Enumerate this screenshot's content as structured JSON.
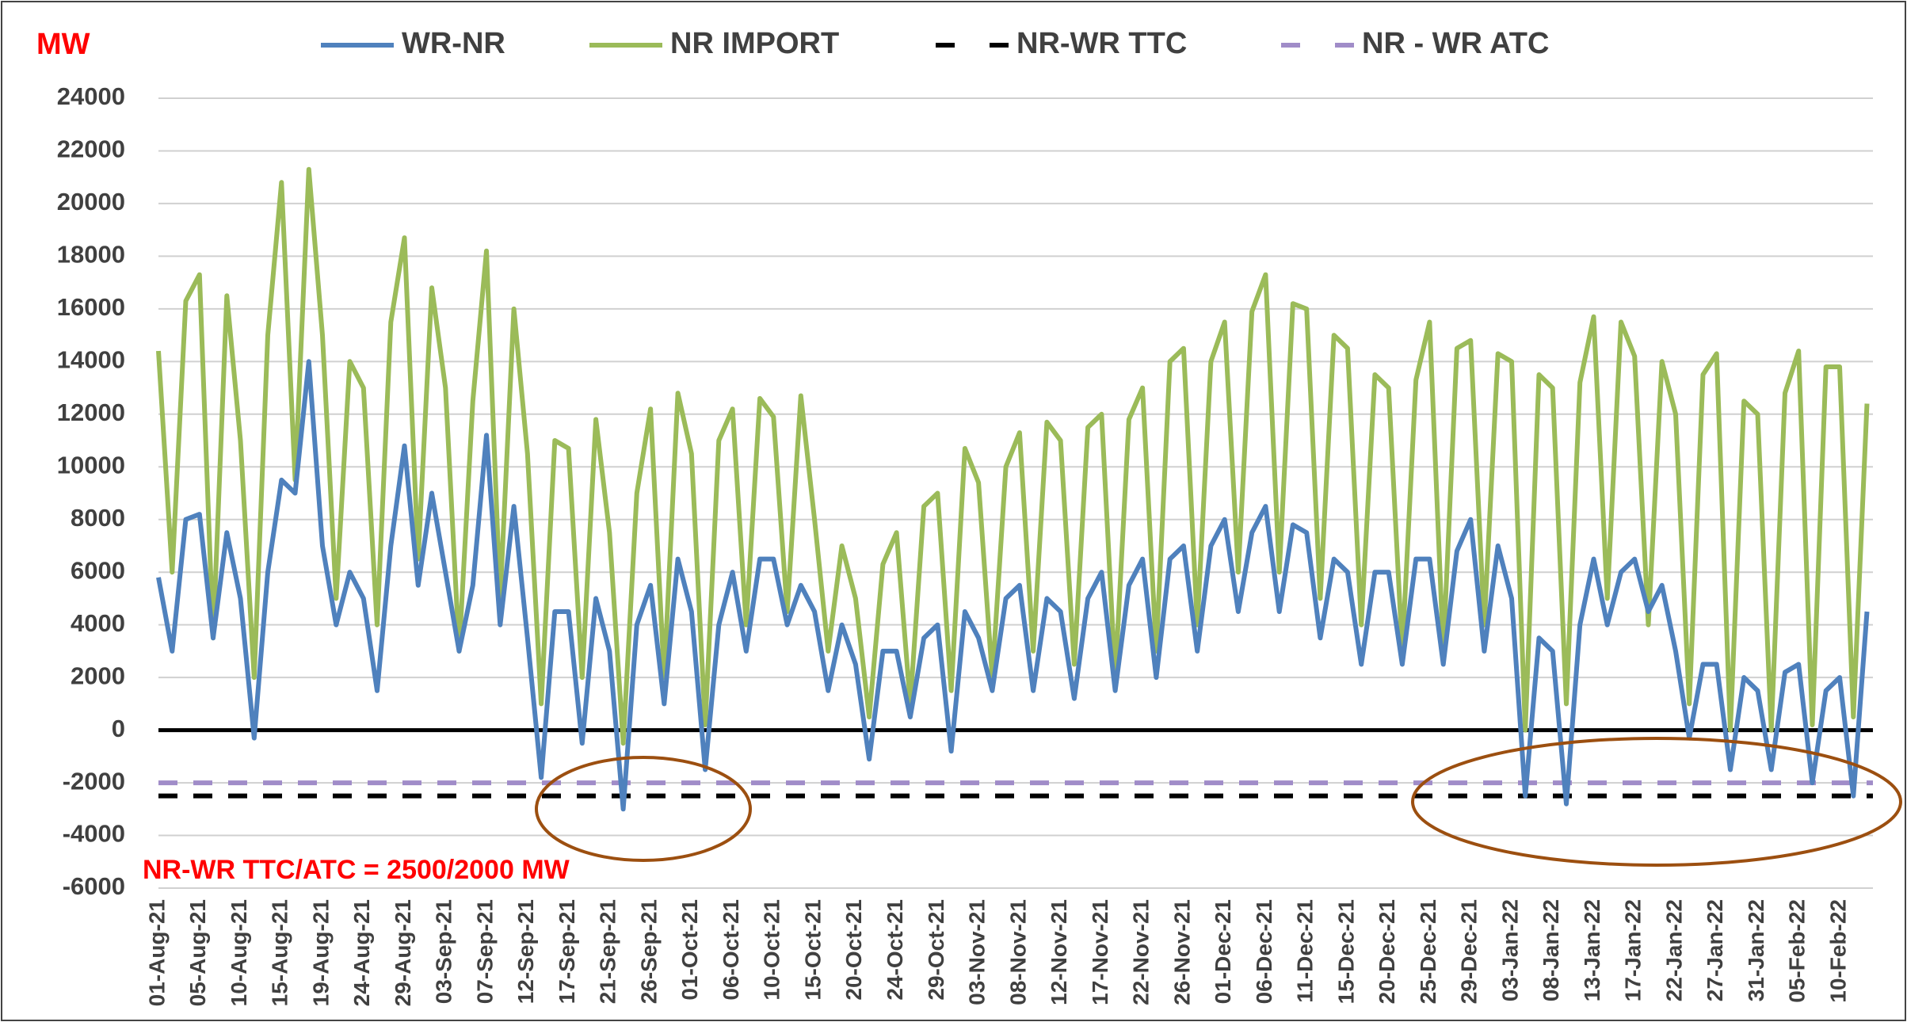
{
  "chart_data": {
    "type": "line",
    "y_label": "MW",
    "annotation": "NR-WR TTC/ATC = 2500/2000 MW",
    "categories": [
      "01-Aug-21",
      null,
      null,
      "05-Aug-21",
      null,
      null,
      "10-Aug-21",
      null,
      null,
      "15-Aug-21",
      null,
      null,
      "19-Aug-21",
      null,
      null,
      "24-Aug-21",
      null,
      null,
      "29-Aug-21",
      null,
      null,
      "03-Sep-21",
      null,
      null,
      "07-Sep-21",
      null,
      null,
      "12-Sep-21",
      null,
      null,
      "17-Sep-21",
      null,
      null,
      "21-Sep-21",
      null,
      null,
      "26-Sep-21",
      null,
      null,
      "01-Oct-21",
      null,
      null,
      "06-Oct-21",
      null,
      null,
      "10-Oct-21",
      null,
      null,
      "15-Oct-21",
      null,
      null,
      "20-Oct-21",
      null,
      null,
      "24-Oct-21",
      null,
      null,
      "29-Oct-21",
      null,
      null,
      "03-Nov-21",
      null,
      null,
      "08-Nov-21",
      null,
      null,
      "12-Nov-21",
      null,
      null,
      "17-Nov-21",
      null,
      null,
      "22-Nov-21",
      null,
      null,
      "26-Nov-21",
      null,
      null,
      "01-Dec-21",
      null,
      null,
      "06-Dec-21",
      null,
      null,
      "11-Dec-21",
      null,
      null,
      "15-Dec-21",
      null,
      null,
      "20-Dec-21",
      null,
      null,
      "25-Dec-21",
      null,
      null,
      "29-Dec-21",
      null,
      null,
      "03-Jan-22",
      null,
      null,
      "08-Jan-22",
      null,
      null,
      "13-Jan-22",
      null,
      null,
      "17-Jan-22",
      null,
      null,
      "22-Jan-22",
      null,
      null,
      "27-Jan-22",
      null,
      null,
      "31-Jan-22",
      null,
      null,
      "05-Feb-22",
      null,
      null,
      "10-Feb-22",
      null,
      null
    ],
    "series": [
      {
        "name": "WR-NR",
        "color": "#4f81bd",
        "values": [
          5800,
          3000,
          8000,
          8200,
          3500,
          7500,
          5000,
          -300,
          6000,
          9500,
          9000,
          14000,
          7000,
          4000,
          6000,
          5000,
          1500,
          7000,
          10800,
          5500,
          9000,
          6000,
          3000,
          5500,
          11200,
          4000,
          8500,
          3500,
          -1800,
          4500,
          4500,
          -500,
          5000,
          3000,
          -3000,
          4000,
          5500,
          1000,
          6500,
          4500,
          -1500,
          4000,
          6000,
          3000,
          6500,
          6500,
          4000,
          5500,
          4500,
          1500,
          4000,
          2500,
          -1100,
          3000,
          3000,
          500,
          3500,
          4000,
          -800,
          4500,
          3500,
          1500,
          5000,
          5500,
          1500,
          5000,
          4500,
          1200,
          5000,
          6000,
          1500,
          5500,
          6500,
          2000,
          6500,
          7000,
          3000,
          7000,
          8000,
          4500,
          7500,
          8500,
          4500,
          7800,
          7500,
          3500,
          6500,
          6000,
          2500,
          6000,
          6000,
          2500,
          6500,
          6500,
          2500,
          6800,
          8000,
          3000,
          7000,
          5000,
          -2500,
          3500,
          3000,
          -2800,
          4000,
          6500,
          4000,
          6000,
          6500,
          4500,
          5500,
          3000,
          -300,
          2500,
          2500,
          -1500,
          2000,
          1500,
          -1500,
          2200,
          2500,
          -2000,
          1500,
          2000,
          -2500,
          4500
        ]
      },
      {
        "name": "NR IMPORT",
        "color": "#9bbb59",
        "values": [
          14400,
          6000,
          16300,
          17300,
          3500,
          16500,
          11000,
          2000,
          15000,
          20800,
          9500,
          21300,
          15000,
          5000,
          14000,
          13000,
          4000,
          15500,
          18700,
          6500,
          16800,
          13000,
          3000,
          12500,
          18200,
          5000,
          16000,
          10500,
          1000,
          11000,
          10700,
          2000,
          11800,
          7500,
          -500,
          9000,
          12200,
          2000,
          12800,
          10500,
          200,
          11000,
          12200,
          4000,
          12600,
          11900,
          4500,
          12700,
          8000,
          3000,
          7000,
          5000,
          500,
          6300,
          7500,
          1000,
          8500,
          9000,
          1500,
          10700,
          9400,
          2000,
          10000,
          11300,
          3000,
          11700,
          11000,
          2500,
          11500,
          12000,
          2000,
          11800,
          13000,
          3000,
          14000,
          14500,
          4000,
          14000,
          15500,
          6000,
          15900,
          17300,
          6000,
          16200,
          16000,
          5000,
          15000,
          14500,
          4000,
          13500,
          13000,
          3000,
          13300,
          15500,
          3000,
          14500,
          14800,
          4000,
          14300,
          14000,
          0,
          13500,
          13000,
          1000,
          13200,
          15700,
          5000,
          15500,
          14200,
          4000,
          14000,
          12000,
          1000,
          13500,
          14300,
          0,
          12500,
          12000,
          0,
          12800,
          14400,
          200,
          13800,
          13800,
          500,
          12400
        ]
      },
      {
        "name": "NR-WR TTC",
        "color": "#000000",
        "dashed": true,
        "value": -2500
      },
      {
        "name": "NR - WR ATC",
        "color": "#a08cc8",
        "dashed": true,
        "value": -2000
      }
    ],
    "ylim": [
      -6000,
      24000
    ],
    "yticks": [
      -6000,
      -4000,
      -2000,
      0,
      2000,
      4000,
      6000,
      8000,
      10000,
      12000,
      14000,
      16000,
      18000,
      20000,
      22000,
      24000
    ],
    "grid": true
  }
}
